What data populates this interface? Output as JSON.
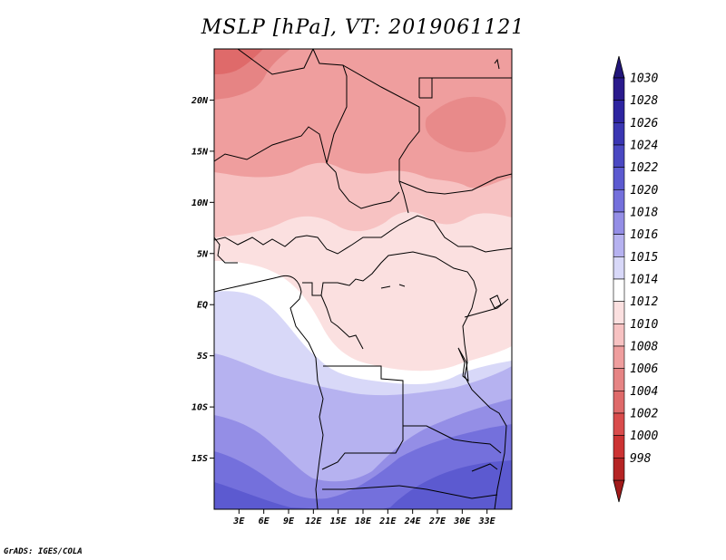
{
  "title": "MSLP [hPa], VT: 2019061121",
  "credit": "GrADS: IGES/COLA",
  "map": {
    "lon_range": [
      0,
      36
    ],
    "lat_range": [
      -20,
      25
    ],
    "lat_ticks": [
      {
        "value": 20,
        "label": "20N"
      },
      {
        "value": 15,
        "label": "15N"
      },
      {
        "value": 10,
        "label": "10N"
      },
      {
        "value": 5,
        "label": "5N"
      },
      {
        "value": 0,
        "label": "EQ"
      },
      {
        "value": -5,
        "label": "5S"
      },
      {
        "value": -10,
        "label": "10S"
      },
      {
        "value": -15,
        "label": "15S"
      }
    ],
    "lon_ticks": [
      {
        "value": 3,
        "label": "3E"
      },
      {
        "value": 6,
        "label": "6E"
      },
      {
        "value": 9,
        "label": "9E"
      },
      {
        "value": 12,
        "label": "12E"
      },
      {
        "value": 15,
        "label": "15E"
      },
      {
        "value": 18,
        "label": "18E"
      },
      {
        "value": 21,
        "label": "21E"
      },
      {
        "value": 24,
        "label": "24E"
      },
      {
        "value": 27,
        "label": "27E"
      },
      {
        "value": 30,
        "label": "30E"
      },
      {
        "value": 33,
        "label": "33E"
      }
    ]
  },
  "colorbar": {
    "levels": [
      {
        "label": "1030",
        "color": "#2a1a8c"
      },
      {
        "label": "1028",
        "color": "#2d24a0"
      },
      {
        "label": "1026",
        "color": "#3a36b2"
      },
      {
        "label": "1024",
        "color": "#4a48c2"
      },
      {
        "label": "1022",
        "color": "#5c5ad0"
      },
      {
        "label": "1020",
        "color": "#7470dc"
      },
      {
        "label": "1018",
        "color": "#948ee6"
      },
      {
        "label": "1016",
        "color": "#b6b2f0"
      },
      {
        "label": "1015",
        "color": "#d8d8f8"
      },
      {
        "label": "1014",
        "color": "#ffffff"
      },
      {
        "label": "1012",
        "color": "#fbe0e0"
      },
      {
        "label": "1010",
        "color": "#f7c2c2"
      },
      {
        "label": "1008",
        "color": "#ef9e9e"
      },
      {
        "label": "1006",
        "color": "#e68484"
      },
      {
        "label": "1004",
        "color": "#df6a6a"
      },
      {
        "label": "1002",
        "color": "#d94c4c"
      },
      {
        "label": "1000",
        "color": "#cc3333"
      },
      {
        "label": "998",
        "color": "#b52424"
      }
    ],
    "top_triangle_color": "#22167a",
    "bottom_triangle_color": "#a11a1a"
  }
}
